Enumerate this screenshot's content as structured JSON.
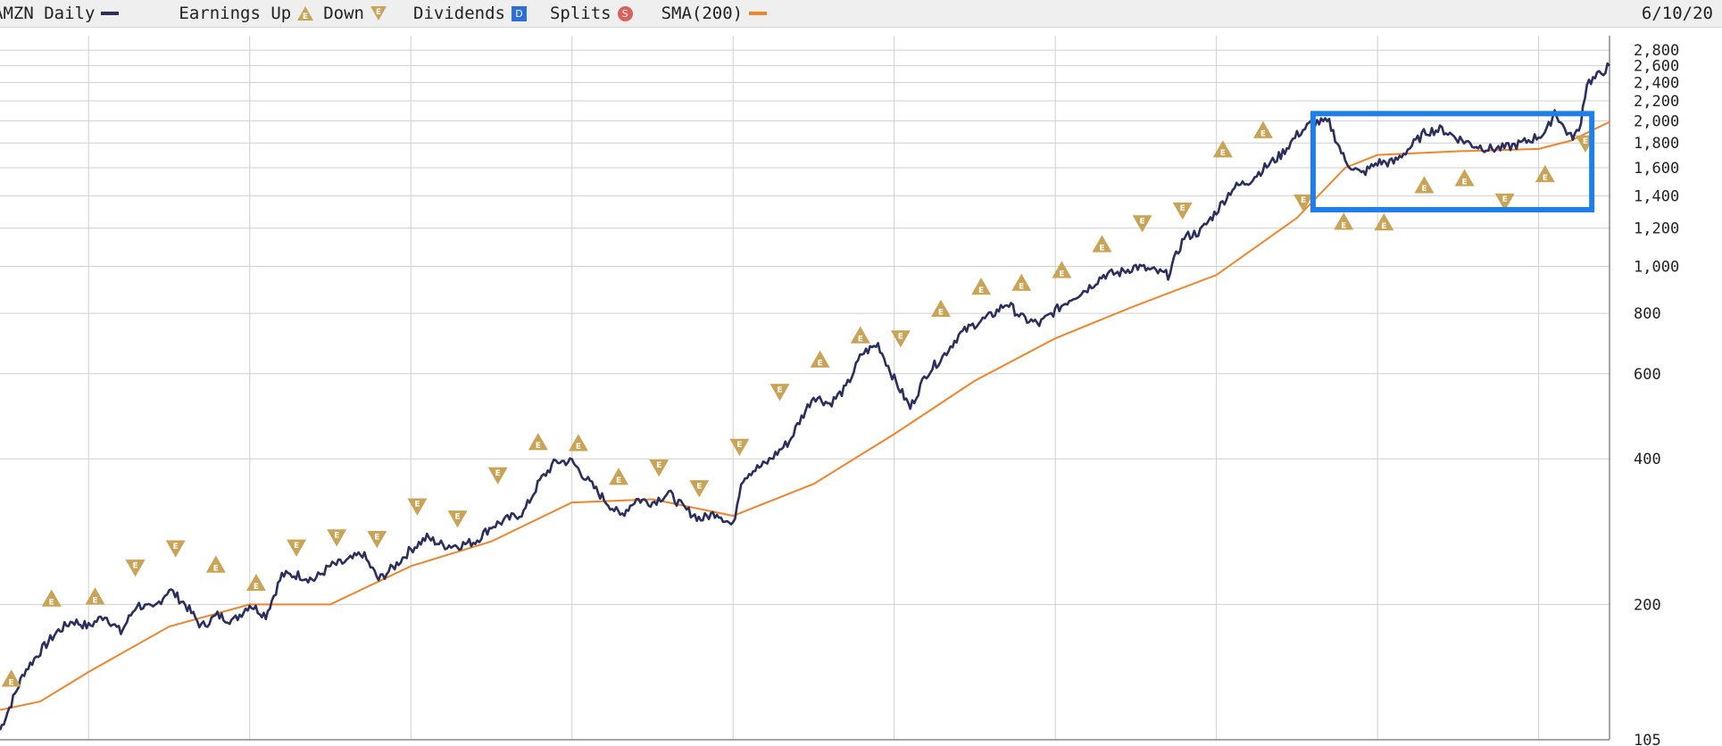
{
  "legend": {
    "ticker": "AMZN Daily",
    "earnings": "Earnings Up",
    "down": "Down",
    "dividends": "Dividends",
    "splits": "Splits",
    "sma": "SMA(200)",
    "dividend_glyph": "D",
    "split_glyph": "S",
    "earnings_glyph": "E"
  },
  "date": "6/10/20",
  "colors": {
    "price": "#2b2f5e",
    "sma": "#f0842a",
    "earnings": "#c9a456",
    "dividends": "#2a6fdc",
    "splits": "#d9625c",
    "highlight": "#1e7fe8",
    "grid": "#cfcfcf"
  },
  "chart_data": {
    "type": "line",
    "scale": "log",
    "ylim": [
      105,
      3000
    ],
    "yticks": [
      {
        "v": 2800,
        "label": "2,800"
      },
      {
        "v": 2600,
        "label": "2,600"
      },
      {
        "v": 2400,
        "label": "2,400"
      },
      {
        "v": 2200,
        "label": "2,200"
      },
      {
        "v": 2000,
        "label": "2,000"
      },
      {
        "v": 1800,
        "label": "1,800"
      },
      {
        "v": 1600,
        "label": "1,600"
      },
      {
        "v": 1400,
        "label": "1,400"
      },
      {
        "v": 1200,
        "label": "1,200"
      },
      {
        "v": 1000,
        "label": "1,000"
      },
      {
        "v": 800,
        "label": "800"
      },
      {
        "v": 600,
        "label": "600"
      },
      {
        "v": 400,
        "label": "400"
      },
      {
        "v": 200,
        "label": "200"
      },
      {
        "v": 105,
        "label": "105"
      }
    ],
    "xlim": [
      2010.45,
      2020.44
    ],
    "xgrid": [
      2011,
      2012,
      2013,
      2014,
      2015,
      2016,
      2017,
      2018,
      2019,
      2020
    ],
    "series": [
      {
        "type": "price",
        "x": [
          2010.45,
          2010.52,
          2010.6,
          2010.7,
          2010.8,
          2010.9,
          2011.0,
          2011.1,
          2011.2,
          2011.3,
          2011.4,
          2011.5,
          2011.6,
          2011.7,
          2011.8,
          2011.9,
          2012.0,
          2012.1,
          2012.2,
          2012.3,
          2012.4,
          2012.5,
          2012.6,
          2012.7,
          2012.8,
          2012.9,
          2013.0,
          2013.1,
          2013.2,
          2013.3,
          2013.4,
          2013.5,
          2013.6,
          2013.7,
          2013.8,
          2013.9,
          2014.0,
          2014.1,
          2014.2,
          2014.3,
          2014.4,
          2014.5,
          2014.6,
          2014.7,
          2014.8,
          2014.9,
          2015.0,
          2015.05,
          2015.1,
          2015.2,
          2015.3,
          2015.35,
          2015.4,
          2015.5,
          2015.6,
          2015.7,
          2015.8,
          2015.9,
          2016.0,
          2016.1,
          2016.2,
          2016.3,
          2016.4,
          2016.5,
          2016.6,
          2016.7,
          2016.8,
          2016.9,
          2017.0,
          2017.1,
          2017.2,
          2017.3,
          2017.4,
          2017.5,
          2017.6,
          2017.7,
          2017.8,
          2017.9,
          2018.0,
          2018.1,
          2018.2,
          2018.3,
          2018.4,
          2018.5,
          2018.6,
          2018.7,
          2018.8,
          2018.9,
          2019.0,
          2019.1,
          2019.2,
          2019.3,
          2019.4,
          2019.5,
          2019.6,
          2019.7,
          2019.8,
          2019.9,
          2020.0,
          2020.05,
          2020.1,
          2020.15,
          2020.2,
          2020.25,
          2020.3,
          2020.35,
          2020.44
        ],
        "y": [
          110,
          125,
          145,
          160,
          175,
          185,
          180,
          190,
          175,
          200,
          195,
          215,
          200,
          180,
          190,
          185,
          200,
          190,
          230,
          230,
          225,
          240,
          245,
          255,
          225,
          240,
          260,
          275,
          265,
          265,
          270,
          290,
          300,
          310,
          360,
          395,
          395,
          360,
          330,
          305,
          330,
          325,
          340,
          315,
          300,
          310,
          290,
          360,
          375,
          390,
          420,
          435,
          470,
          540,
          520,
          560,
          660,
          690,
          585,
          510,
          600,
          650,
          720,
          760,
          790,
          840,
          780,
          760,
          810,
          860,
          900,
          960,
          970,
          1000,
          980,
          960,
          1150,
          1180,
          1300,
          1450,
          1500,
          1600,
          1700,
          1870,
          1990,
          1980,
          1650,
          1550,
          1640,
          1640,
          1760,
          1900,
          1920,
          1840,
          1780,
          1750,
          1760,
          1800,
          1860,
          1900,
          2100,
          1950,
          1850,
          1900,
          2400,
          2450,
          2600
        ]
      },
      {
        "type": "sma",
        "x": [
          2010.45,
          2010.7,
          2011.0,
          2011.5,
          2012.0,
          2012.5,
          2013.0,
          2013.5,
          2014.0,
          2014.5,
          2015.0,
          2015.5,
          2016.0,
          2016.5,
          2017.0,
          2017.5,
          2018.0,
          2018.5,
          2018.8,
          2019.0,
          2019.5,
          2020.0,
          2020.2,
          2020.44
        ],
        "y": [
          121,
          126,
          145,
          180,
          200,
          200,
          240,
          270,
          325,
          330,
          305,
          355,
          450,
          580,
          710,
          830,
          960,
          1260,
          1600,
          1700,
          1730,
          1750,
          1820,
          1990
        ]
      }
    ],
    "earnings": [
      {
        "x": 2010.52,
        "y": 140,
        "dir": "up"
      },
      {
        "x": 2010.77,
        "y": 205,
        "dir": "up"
      },
      {
        "x": 2011.04,
        "y": 207,
        "dir": "up"
      },
      {
        "x": 2011.29,
        "y": 239,
        "dir": "down"
      },
      {
        "x": 2011.54,
        "y": 262,
        "dir": "down"
      },
      {
        "x": 2011.79,
        "y": 241,
        "dir": "up"
      },
      {
        "x": 2012.04,
        "y": 221,
        "dir": "up"
      },
      {
        "x": 2012.29,
        "y": 263,
        "dir": "down"
      },
      {
        "x": 2012.54,
        "y": 276,
        "dir": "down"
      },
      {
        "x": 2012.79,
        "y": 274,
        "dir": "down"
      },
      {
        "x": 2013.04,
        "y": 320,
        "dir": "down"
      },
      {
        "x": 2013.29,
        "y": 302,
        "dir": "down"
      },
      {
        "x": 2013.54,
        "y": 371,
        "dir": "down"
      },
      {
        "x": 2013.79,
        "y": 432,
        "dir": "up"
      },
      {
        "x": 2014.04,
        "y": 430,
        "dir": "up"
      },
      {
        "x": 2014.29,
        "y": 366,
        "dir": "up"
      },
      {
        "x": 2014.54,
        "y": 385,
        "dir": "down"
      },
      {
        "x": 2014.79,
        "y": 349,
        "dir": "down"
      },
      {
        "x": 2015.04,
        "y": 425,
        "dir": "down"
      },
      {
        "x": 2015.29,
        "y": 552,
        "dir": "down"
      },
      {
        "x": 2015.54,
        "y": 640,
        "dir": "up"
      },
      {
        "x": 2015.79,
        "y": 718,
        "dir": "up"
      },
      {
        "x": 2016.04,
        "y": 712,
        "dir": "down"
      },
      {
        "x": 2016.29,
        "y": 815,
        "dir": "up"
      },
      {
        "x": 2016.54,
        "y": 905,
        "dir": "up"
      },
      {
        "x": 2016.79,
        "y": 922,
        "dir": "up"
      },
      {
        "x": 2017.04,
        "y": 980,
        "dir": "up"
      },
      {
        "x": 2017.29,
        "y": 1108,
        "dir": "up"
      },
      {
        "x": 2017.54,
        "y": 1232,
        "dir": "down"
      },
      {
        "x": 2017.79,
        "y": 1309,
        "dir": "down"
      },
      {
        "x": 2018.04,
        "y": 1741,
        "dir": "up"
      },
      {
        "x": 2018.29,
        "y": 1907,
        "dir": "up"
      },
      {
        "x": 2018.54,
        "y": 1360,
        "dir": "down"
      },
      {
        "x": 2018.79,
        "y": 1233,
        "dir": "up"
      },
      {
        "x": 2019.04,
        "y": 1229,
        "dir": "up"
      },
      {
        "x": 2019.29,
        "y": 1468,
        "dir": "up"
      },
      {
        "x": 2019.54,
        "y": 1518,
        "dir": "up"
      },
      {
        "x": 2019.79,
        "y": 1366,
        "dir": "down"
      },
      {
        "x": 2020.04,
        "y": 1547,
        "dir": "up"
      },
      {
        "x": 2020.29,
        "y": 1802,
        "dir": "down"
      }
    ],
    "highlight": {
      "x0": 2018.6,
      "x1": 2020.33,
      "y0": 1310,
      "y1": 2070
    }
  }
}
